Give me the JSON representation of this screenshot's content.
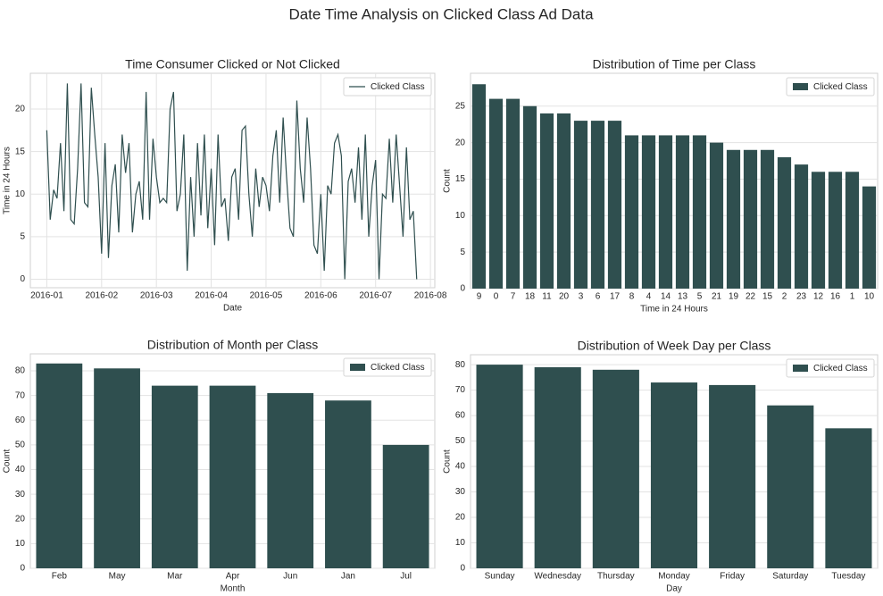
{
  "title": "Date Time Analysis on Clicked Class Ad Data",
  "chart_data": [
    {
      "type": "line",
      "title": "Time Consumer Clicked or Not Clicked",
      "xlabel": "Date",
      "ylabel": "Time in 24 Hours",
      "legend": "upper right",
      "grid": true,
      "xlim": [
        -0.3,
        7.08
      ],
      "xticks": [
        {
          "value": 0,
          "label": "2016-01"
        },
        {
          "value": 1,
          "label": "2016-02"
        },
        {
          "value": 2,
          "label": "2016-03"
        },
        {
          "value": 3,
          "label": "2016-04"
        },
        {
          "value": 4,
          "label": "2016-05"
        },
        {
          "value": 5,
          "label": "2016-06"
        },
        {
          "value": 6,
          "label": "2016-07"
        },
        {
          "value": 7,
          "label": "2016-08"
        }
      ],
      "ylim": [
        -1,
        24.2
      ],
      "yticks": [
        0,
        5,
        10,
        15,
        20
      ],
      "x": [
        0,
        0.0625,
        0.125,
        0.1875,
        0.25,
        0.3125,
        0.375,
        0.4375,
        0.5,
        0.5625,
        0.625,
        0.6875,
        0.75,
        0.8125,
        0.875,
        0.9375,
        1,
        1.0625,
        1.125,
        1.1875,
        1.25,
        1.3125,
        1.375,
        1.4375,
        1.5,
        1.5625,
        1.625,
        1.6875,
        1.75,
        1.8125,
        1.875,
        1.9375,
        2,
        2.0625,
        2.125,
        2.1875,
        2.25,
        2.3125,
        2.375,
        2.4375,
        2.5,
        2.5625,
        2.625,
        2.6875,
        2.75,
        2.8125,
        2.875,
        2.9375,
        3,
        3.0625,
        3.125,
        3.1875,
        3.25,
        3.3125,
        3.375,
        3.4375,
        3.5,
        3.5625,
        3.625,
        3.6875,
        3.75,
        3.8125,
        3.875,
        3.9375,
        4,
        4.0625,
        4.125,
        4.1875,
        4.25,
        4.3125,
        4.375,
        4.4375,
        4.5,
        4.5625,
        4.625,
        4.6875,
        4.75,
        4.8125,
        4.875,
        4.9375,
        5,
        5.0625,
        5.125,
        5.1875,
        5.25,
        5.3125,
        5.375,
        5.4375,
        5.5,
        5.5625,
        5.625,
        5.6875,
        5.75,
        5.8125,
        5.875,
        5.9375,
        6,
        6.0625,
        6.125,
        6.1875,
        6.25,
        6.3125,
        6.375,
        6.4375,
        6.5,
        6.5625,
        6.625,
        6.6875,
        6.75
      ],
      "series": [
        {
          "name": "Clicked Class",
          "color": "#2f4f4f",
          "values": [
            17.5,
            7,
            10.5,
            9.5,
            16,
            8,
            23,
            7,
            6.5,
            13,
            23,
            9,
            8.5,
            22.5,
            17,
            12,
            3,
            16,
            2.5,
            11,
            13.5,
            5.5,
            17,
            12.5,
            16,
            5.5,
            10,
            11.5,
            7,
            22,
            7,
            16.5,
            12,
            9,
            9.5,
            9,
            20,
            22,
            8,
            10,
            17,
            1,
            12,
            5,
            16,
            7.5,
            17,
            6,
            13,
            4,
            17,
            8.5,
            9.5,
            4.5,
            12,
            13,
            7,
            17.5,
            18,
            10,
            5,
            13,
            8.5,
            12,
            11,
            8,
            14.5,
            17.5,
            9,
            19,
            12,
            6,
            5,
            21,
            13,
            9,
            19,
            13,
            4,
            3,
            10,
            1,
            11,
            10,
            16,
            17,
            14.5,
            0,
            11.5,
            13,
            9,
            15.5,
            7,
            17,
            5,
            11,
            14,
            0,
            10,
            9.5,
            16.5,
            9,
            17,
            11,
            5,
            15.5,
            7,
            8,
            0
          ]
        }
      ]
    },
    {
      "type": "bar",
      "title": "Distribution of Time per Class",
      "xlabel": "Time in 24 Hours",
      "ylabel": "Count",
      "legend": "upper right",
      "grid": true,
      "categories": [
        "9",
        "0",
        "7",
        "18",
        "11",
        "20",
        "3",
        "6",
        "17",
        "8",
        "4",
        "14",
        "13",
        "5",
        "21",
        "19",
        "22",
        "15",
        "2",
        "23",
        "12",
        "16",
        "1",
        "10"
      ],
      "ylim": [
        0,
        29.5
      ],
      "yticks": [
        0,
        5,
        10,
        15,
        20,
        25
      ],
      "series": [
        {
          "name": "Clicked Class",
          "color": "#2f4f4f",
          "values": [
            28,
            26,
            26,
            25,
            24,
            24,
            23,
            23,
            23,
            21,
            21,
            21,
            21,
            21,
            20,
            19,
            19,
            19,
            18,
            17,
            16,
            16,
            16,
            14
          ]
        }
      ]
    },
    {
      "type": "bar",
      "title": "Distribution of Month per Class",
      "xlabel": "Month",
      "ylabel": "Count",
      "legend": "upper right",
      "grid": true,
      "categories": [
        "Feb",
        "May",
        "Mar",
        "Apr",
        "Jun",
        "Jan",
        "Jul"
      ],
      "ylim": [
        0,
        86.9
      ],
      "yticks": [
        0,
        10,
        20,
        30,
        40,
        50,
        60,
        70,
        80
      ],
      "series": [
        {
          "name": "Clicked Class",
          "color": "#2f4f4f",
          "values": [
            83,
            81,
            74,
            74,
            71,
            68,
            50
          ]
        }
      ]
    },
    {
      "type": "bar",
      "title": "Distribution of Week Day per Class",
      "xlabel": "Day",
      "ylabel": "Count",
      "legend": "upper right",
      "grid": true,
      "categories": [
        "Sunday",
        "Wednesday",
        "Thursday",
        "Monday",
        "Friday",
        "Saturday",
        "Tuesday"
      ],
      "ylim": [
        0,
        83.9
      ],
      "yticks": [
        0,
        10,
        20,
        30,
        40,
        50,
        60,
        70,
        80
      ],
      "series": [
        {
          "name": "Clicked Class",
          "color": "#2f4f4f",
          "values": [
            80,
            79,
            78,
            73,
            72,
            64,
            55
          ]
        }
      ]
    }
  ]
}
